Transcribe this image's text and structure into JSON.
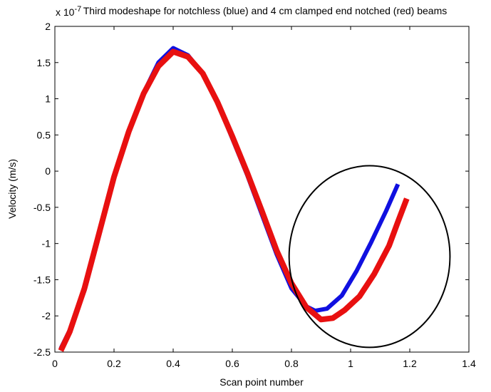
{
  "chart_data": {
    "type": "line",
    "title": "Third modeshape for notchless (blue) and 4 cm clamped end notched (red) beams",
    "xlabel": "Scan point number",
    "ylabel": "Velocity (m/s)",
    "y_exponent_label": "x 10",
    "y_exponent_power": "-7",
    "xlim": [
      0,
      1.4
    ],
    "ylim": [
      -2.5,
      2
    ],
    "x_ticks": [
      0,
      0.2,
      0.4,
      0.6,
      0.8,
      1,
      1.2,
      1.4
    ],
    "x_tick_labels": [
      "0",
      "0.2",
      "0.4",
      "0.6",
      "0.8",
      "1",
      "1.2",
      "1.4"
    ],
    "y_ticks": [
      -2.5,
      -2,
      -1.5,
      -1,
      -0.5,
      0,
      0.5,
      1,
      1.5,
      2
    ],
    "y_tick_labels": [
      "-2.5",
      "-2",
      "-1.5",
      "-1",
      "-0.5",
      "0",
      "0.5",
      "1",
      "1.5",
      "2"
    ],
    "grid": false,
    "series": [
      {
        "color": "#1010e0",
        "x": [
          0.02,
          0.05,
          0.1,
          0.15,
          0.2,
          0.25,
          0.3,
          0.35,
          0.4,
          0.45,
          0.5,
          0.55,
          0.6,
          0.65,
          0.7,
          0.75,
          0.8,
          0.85,
          0.88,
          0.92,
          0.97,
          1.02,
          1.07,
          1.12,
          1.16
        ],
        "y": [
          -2.45,
          -2.2,
          -1.65,
          -0.88,
          -0.1,
          0.55,
          1.08,
          1.5,
          1.7,
          1.6,
          1.35,
          0.95,
          0.45,
          -0.05,
          -0.6,
          -1.15,
          -1.62,
          -1.87,
          -1.93,
          -1.9,
          -1.72,
          -1.38,
          -0.98,
          -0.55,
          -0.18
        ]
      },
      {
        "color": "#e81010",
        "x": [
          0.02,
          0.05,
          0.1,
          0.15,
          0.2,
          0.25,
          0.3,
          0.35,
          0.4,
          0.45,
          0.5,
          0.55,
          0.6,
          0.65,
          0.7,
          0.75,
          0.8,
          0.85,
          0.9,
          0.94,
          0.98,
          1.03,
          1.08,
          1.13,
          1.16,
          1.19
        ],
        "y": [
          -2.48,
          -2.22,
          -1.62,
          -0.85,
          -0.08,
          0.55,
          1.07,
          1.45,
          1.65,
          1.58,
          1.35,
          0.95,
          0.48,
          -0.02,
          -0.55,
          -1.1,
          -1.55,
          -1.88,
          -2.05,
          -2.03,
          -1.92,
          -1.73,
          -1.42,
          -1.03,
          -0.7,
          -0.38
        ]
      }
    ],
    "annotations": [
      {
        "type": "ellipse",
        "color": "#000000",
        "cx": 1.064,
        "cy": -1.18,
        "rx": 0.272,
        "ry": 1.255
      }
    ]
  }
}
